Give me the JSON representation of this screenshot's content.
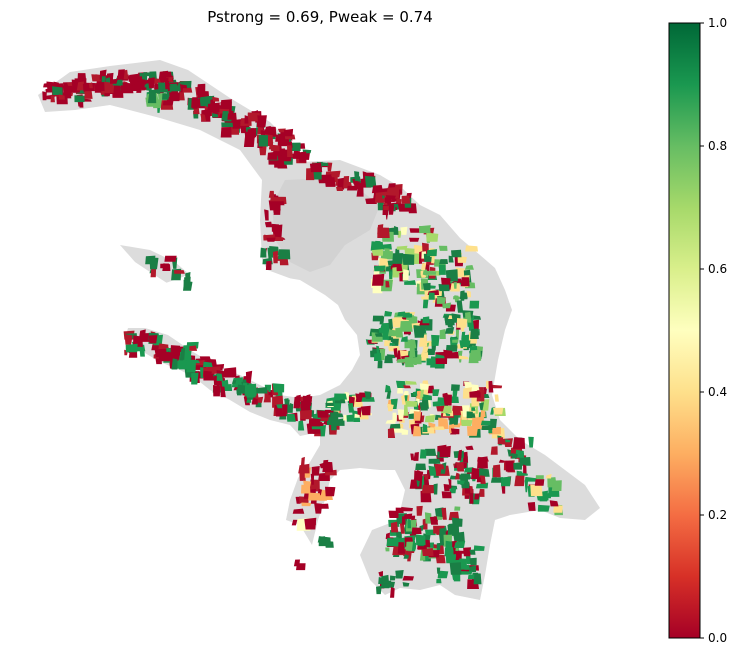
{
  "title": "Pstrong = 0.69, Pweak = 0.74",
  "colorbar": {
    "colormap": "RdYlGn",
    "min": 0.0,
    "max": 1.0,
    "ticks": [
      "0.0",
      "0.2",
      "0.4",
      "0.6",
      "0.8",
      "1.0"
    ],
    "stops": [
      "#a50026",
      "#d73027",
      "#f46d43",
      "#fdae61",
      "#fee08b",
      "#ffffbf",
      "#d9ef8b",
      "#a6d96a",
      "#66bd63",
      "#1a9850",
      "#006837"
    ]
  },
  "map": {
    "background_color": "#dcdcdc",
    "no_data_color": "#dcdcdc"
  }
}
